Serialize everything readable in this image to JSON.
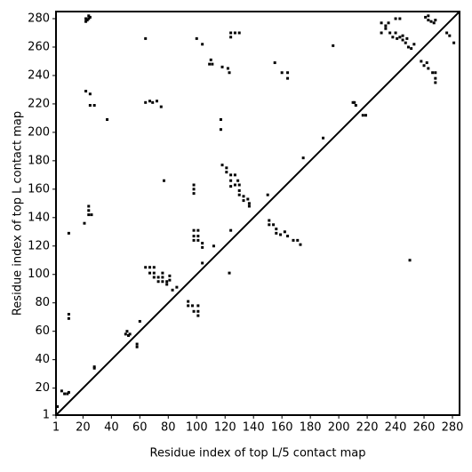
{
  "chart_data": {
    "type": "scatter",
    "x_label": "Residue index of top L/5 contact map",
    "y_label": "Residue index of top L contact map",
    "xlim": [
      1,
      285
    ],
    "ylim": [
      1,
      285
    ],
    "xticks": [
      1,
      20,
      40,
      60,
      80,
      100,
      120,
      140,
      160,
      180,
      200,
      220,
      240,
      260,
      280
    ],
    "yticks": [
      1,
      20,
      40,
      60,
      80,
      100,
      120,
      140,
      160,
      180,
      200,
      220,
      240,
      260,
      280
    ],
    "color": "#000000",
    "diagonal": true,
    "x": [
      22,
      23,
      24,
      25,
      24,
      22,
      64,
      100,
      104,
      110,
      111,
      109,
      118,
      122,
      123,
      124,
      124,
      127,
      130,
      155,
      160,
      164,
      164,
      196,
      210,
      212,
      211,
      217,
      219,
      230,
      233,
      235,
      240,
      243,
      230,
      233,
      236,
      238,
      240,
      243,
      245,
      247,
      249,
      251,
      253,
      245,
      248,
      241,
      258,
      260,
      263,
      262,
      266,
      268,
      268,
      268,
      261,
      263,
      265,
      267,
      263,
      268,
      276,
      278,
      281,
      22,
      25,
      25,
      28,
      37,
      64,
      67,
      69,
      72,
      75,
      117,
      117,
      77,
      118,
      121,
      121,
      124,
      127,
      124,
      127,
      130,
      124,
      130,
      130,
      133,
      133,
      136,
      137,
      137,
      129,
      98,
      98,
      98,
      98,
      101,
      98,
      101,
      98,
      101,
      104,
      104,
      112,
      151,
      151,
      154,
      156,
      156,
      159,
      162,
      164,
      168,
      171,
      173,
      175,
      189,
      150,
      64,
      67,
      70,
      67,
      70,
      70,
      73,
      76,
      73,
      76,
      79,
      79,
      81,
      81,
      76,
      83,
      86,
      104,
      94,
      94,
      97,
      101,
      98,
      101,
      101,
      50,
      52,
      51,
      53,
      58,
      58,
      60,
      24,
      24,
      24,
      26,
      21,
      10,
      10,
      10,
      5,
      7,
      9,
      10,
      28,
      28,
      124,
      123,
      250,
      2
    ],
    "values": [
      278,
      279,
      280,
      281,
      282,
      280,
      266,
      266,
      262,
      251,
      248,
      248,
      246,
      245,
      242,
      267,
      270,
      270,
      270,
      249,
      242,
      242,
      238,
      261,
      221,
      219,
      221,
      212,
      212,
      277,
      275,
      277,
      280,
      280,
      270,
      273,
      270,
      267,
      270,
      267,
      265,
      263,
      260,
      259,
      262,
      268,
      266,
      266,
      250,
      247,
      245,
      249,
      242,
      238,
      242,
      235,
      281,
      279,
      278,
      277,
      282,
      279,
      270,
      268,
      263,
      229,
      227,
      219,
      219,
      209,
      221,
      222,
      221,
      222,
      218,
      209,
      202,
      166,
      177,
      175,
      172,
      170,
      170,
      166,
      163,
      163,
      162,
      159,
      156,
      155,
      152,
      153,
      150,
      148,
      166,
      163,
      160,
      157,
      131,
      131,
      127,
      127,
      124,
      124,
      122,
      119,
      120,
      138,
      135,
      135,
      132,
      129,
      128,
      130,
      127,
      124,
      124,
      121,
      182,
      196,
      156,
      105,
      105,
      105,
      101,
      101,
      98,
      98,
      98,
      95,
      95,
      95,
      93,
      96,
      99,
      101,
      89,
      91,
      108,
      81,
      78,
      78,
      78,
      74,
      74,
      71,
      58,
      57,
      60,
      58,
      51,
      49,
      67,
      148,
      145,
      142,
      142,
      136,
      129,
      72,
      69,
      18,
      16,
      16,
      17,
      35,
      34,
      131,
      101,
      110,
      7
    ]
  }
}
